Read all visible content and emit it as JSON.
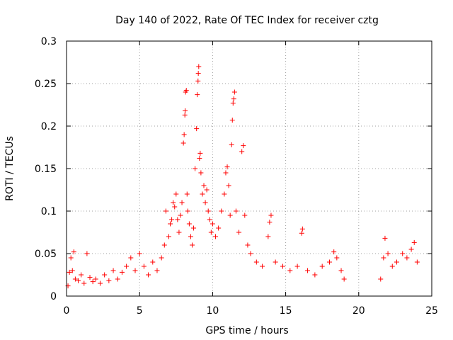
{
  "chart_data": {
    "type": "scatter",
    "title": "Day 140 of 2022, Rate Of TEC Index for receiver cztg",
    "xlabel": "GPS time / hours",
    "ylabel": "ROTI / TECUs",
    "xlim": [
      0,
      25
    ],
    "ylim": [
      0,
      0.3
    ],
    "xticks": [
      0,
      5,
      10,
      15,
      20,
      25
    ],
    "yticks": [
      0,
      0.05,
      0.1,
      0.15,
      0.2,
      0.25,
      0.3
    ],
    "xtick_labels": [
      "0",
      "5",
      "10",
      "15",
      "20",
      "25"
    ],
    "ytick_labels": [
      "0",
      "0.05",
      "0.1",
      "0.15",
      "0.2",
      "0.25",
      "0.3"
    ],
    "grid": true,
    "marker": "+",
    "color": "#ff0000",
    "series": [
      {
        "points": [
          [
            0.1,
            0.012
          ],
          [
            0.2,
            0.028
          ],
          [
            0.3,
            0.045
          ],
          [
            0.4,
            0.03
          ],
          [
            0.5,
            0.052
          ],
          [
            0.6,
            0.02
          ],
          [
            0.8,
            0.018
          ],
          [
            1.0,
            0.025
          ],
          [
            1.2,
            0.015
          ],
          [
            1.4,
            0.05
          ],
          [
            1.6,
            0.022
          ],
          [
            1.8,
            0.017
          ],
          [
            2.0,
            0.02
          ],
          [
            2.3,
            0.015
          ],
          [
            2.6,
            0.025
          ],
          [
            2.9,
            0.018
          ],
          [
            3.2,
            0.03
          ],
          [
            3.5,
            0.02
          ],
          [
            3.8,
            0.028
          ],
          [
            4.1,
            0.035
          ],
          [
            4.4,
            0.045
          ],
          [
            4.7,
            0.03
          ],
          [
            5.0,
            0.05
          ],
          [
            5.3,
            0.035
          ],
          [
            5.6,
            0.025
          ],
          [
            5.9,
            0.04
          ],
          [
            6.2,
            0.03
          ],
          [
            6.5,
            0.045
          ],
          [
            6.7,
            0.06
          ],
          [
            6.8,
            0.1
          ],
          [
            7.0,
            0.07
          ],
          [
            7.1,
            0.085
          ],
          [
            7.2,
            0.09
          ],
          [
            7.3,
            0.11
          ],
          [
            7.4,
            0.105
          ],
          [
            7.5,
            0.12
          ],
          [
            7.6,
            0.09
          ],
          [
            7.7,
            0.075
          ],
          [
            7.8,
            0.095
          ],
          [
            7.9,
            0.11
          ],
          [
            8.0,
            0.18
          ],
          [
            8.05,
            0.19
          ],
          [
            8.1,
            0.213
          ],
          [
            8.12,
            0.218
          ],
          [
            8.15,
            0.24
          ],
          [
            8.2,
            0.242
          ],
          [
            8.25,
            0.12
          ],
          [
            8.3,
            0.1
          ],
          [
            8.4,
            0.085
          ],
          [
            8.5,
            0.07
          ],
          [
            8.6,
            0.06
          ],
          [
            8.7,
            0.08
          ],
          [
            8.8,
            0.15
          ],
          [
            8.9,
            0.197
          ],
          [
            8.95,
            0.237
          ],
          [
            9.0,
            0.253
          ],
          [
            9.02,
            0.262
          ],
          [
            9.05,
            0.27
          ],
          [
            9.1,
            0.162
          ],
          [
            9.15,
            0.168
          ],
          [
            9.2,
            0.145
          ],
          [
            9.3,
            0.12
          ],
          [
            9.4,
            0.13
          ],
          [
            9.5,
            0.11
          ],
          [
            9.6,
            0.125
          ],
          [
            9.7,
            0.1
          ],
          [
            9.8,
            0.09
          ],
          [
            9.9,
            0.075
          ],
          [
            10.0,
            0.085
          ],
          [
            10.2,
            0.07
          ],
          [
            10.4,
            0.08
          ],
          [
            10.6,
            0.1
          ],
          [
            10.8,
            0.12
          ],
          [
            10.9,
            0.145
          ],
          [
            11.0,
            0.152
          ],
          [
            11.1,
            0.13
          ],
          [
            11.2,
            0.095
          ],
          [
            11.3,
            0.178
          ],
          [
            11.35,
            0.207
          ],
          [
            11.4,
            0.227
          ],
          [
            11.45,
            0.232
          ],
          [
            11.5,
            0.24
          ],
          [
            11.6,
            0.1
          ],
          [
            11.8,
            0.075
          ],
          [
            12.0,
            0.17
          ],
          [
            12.1,
            0.177
          ],
          [
            12.2,
            0.095
          ],
          [
            12.4,
            0.06
          ],
          [
            12.6,
            0.05
          ],
          [
            13.0,
            0.04
          ],
          [
            13.4,
            0.035
          ],
          [
            13.8,
            0.07
          ],
          [
            13.9,
            0.087
          ],
          [
            14.0,
            0.095
          ],
          [
            14.3,
            0.04
          ],
          [
            14.8,
            0.035
          ],
          [
            15.3,
            0.03
          ],
          [
            15.8,
            0.035
          ],
          [
            16.1,
            0.074
          ],
          [
            16.15,
            0.079
          ],
          [
            16.5,
            0.03
          ],
          [
            17.0,
            0.025
          ],
          [
            17.5,
            0.035
          ],
          [
            18.0,
            0.04
          ],
          [
            18.3,
            0.052
          ],
          [
            18.5,
            0.045
          ],
          [
            18.8,
            0.03
          ],
          [
            19.0,
            0.02
          ],
          [
            21.5,
            0.02
          ],
          [
            21.7,
            0.045
          ],
          [
            21.8,
            0.068
          ],
          [
            22.0,
            0.05
          ],
          [
            22.3,
            0.035
          ],
          [
            22.6,
            0.04
          ],
          [
            23.0,
            0.05
          ],
          [
            23.3,
            0.045
          ],
          [
            23.6,
            0.055
          ],
          [
            23.8,
            0.063
          ],
          [
            24.0,
            0.04
          ]
        ]
      }
    ]
  }
}
